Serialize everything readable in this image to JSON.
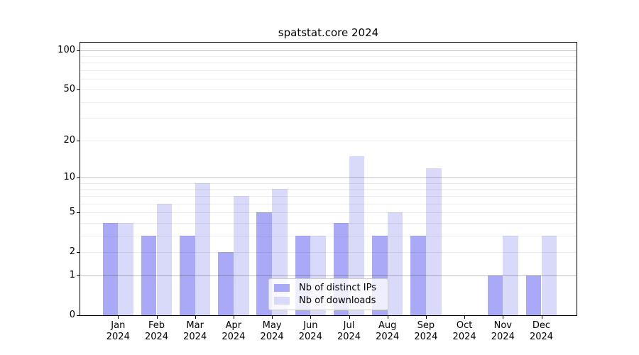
{
  "chart_data": {
    "type": "bar",
    "title": "spatstat.core 2024",
    "categories": [
      "Jan",
      "Feb",
      "Mar",
      "Apr",
      "May",
      "Jun",
      "Jul",
      "Aug",
      "Sep",
      "Oct",
      "Nov",
      "Dec"
    ],
    "x_year_label": "2024",
    "series": [
      {
        "name": "Nb of distinct IPs",
        "color": "#a9a9f8",
        "values": [
          4,
          3,
          3,
          2,
          5,
          3,
          4,
          3,
          3,
          0,
          1,
          1
        ]
      },
      {
        "name": "Nb of downloads",
        "color": "#d9d9fa",
        "values": [
          4,
          6,
          9,
          7,
          8,
          3,
          15,
          5,
          12,
          0,
          3,
          3
        ]
      }
    ],
    "y_axis": {
      "scale": "log10(value+1)",
      "tick_values": [
        100,
        50,
        20,
        10,
        5,
        2,
        1,
        0
      ],
      "major_gridlines": [
        100,
        10,
        1
      ],
      "minor_gridlines": [
        90,
        80,
        70,
        60,
        50,
        40,
        30,
        20,
        9,
        8,
        7,
        6,
        5,
        4,
        3,
        2
      ],
      "range_max": 114,
      "range_min": 0
    },
    "legend": {
      "position": "lower center"
    },
    "colors": {
      "major_gridline": "rgba(0,0,0,0.24)",
      "minor_gridline": "rgba(0,0,0,0.07)"
    }
  }
}
